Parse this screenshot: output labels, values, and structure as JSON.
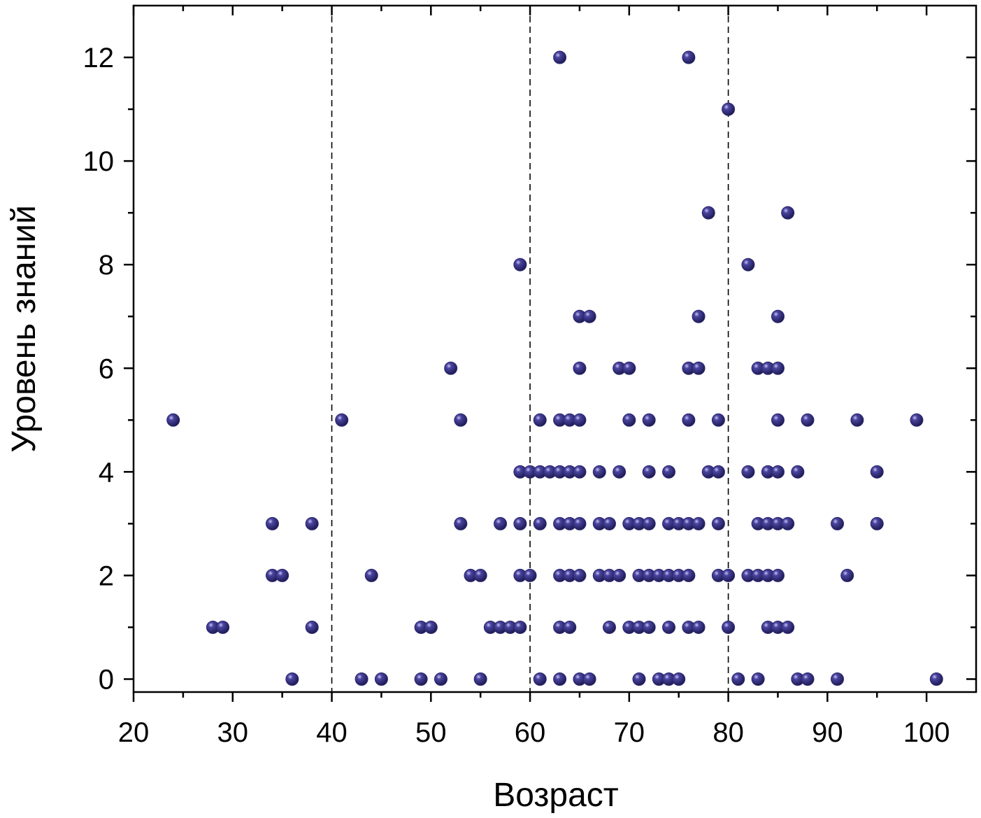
{
  "chart_data": {
    "type": "scatter",
    "title": "",
    "xlabel": "Возраст",
    "ylabel": "Уровень знаний",
    "xlim": [
      20,
      105
    ],
    "ylim": [
      -0.25,
      13
    ],
    "xticks": [
      20,
      30,
      40,
      50,
      60,
      70,
      80,
      90,
      100
    ],
    "yticks": [
      0,
      2,
      4,
      6,
      8,
      10,
      12
    ],
    "xminor": [
      25,
      35,
      45,
      55,
      65,
      75,
      85,
      95
    ],
    "yminor": [
      1,
      3,
      5,
      7,
      9,
      11
    ],
    "vlines": [
      40,
      60,
      80
    ],
    "grid": false,
    "marker_color": "#2e2a6e",
    "points": [
      {
        "x": 63,
        "y": 12
      },
      {
        "x": 76,
        "y": 12
      },
      {
        "x": 80,
        "y": 11
      },
      {
        "x": 78,
        "y": 9
      },
      {
        "x": 86,
        "y": 9
      },
      {
        "x": 59,
        "y": 8
      },
      {
        "x": 82,
        "y": 8
      },
      {
        "x": 65,
        "y": 7
      },
      {
        "x": 66,
        "y": 7
      },
      {
        "x": 77,
        "y": 7
      },
      {
        "x": 85,
        "y": 7
      },
      {
        "x": 52,
        "y": 6
      },
      {
        "x": 65,
        "y": 6
      },
      {
        "x": 69,
        "y": 6
      },
      {
        "x": 70,
        "y": 6
      },
      {
        "x": 76,
        "y": 6
      },
      {
        "x": 77,
        "y": 6
      },
      {
        "x": 83,
        "y": 6
      },
      {
        "x": 84,
        "y": 6
      },
      {
        "x": 85,
        "y": 6
      },
      {
        "x": 24,
        "y": 5
      },
      {
        "x": 41,
        "y": 5
      },
      {
        "x": 53,
        "y": 5
      },
      {
        "x": 61,
        "y": 5
      },
      {
        "x": 63,
        "y": 5
      },
      {
        "x": 64,
        "y": 5
      },
      {
        "x": 65,
        "y": 5
      },
      {
        "x": 70,
        "y": 5
      },
      {
        "x": 72,
        "y": 5
      },
      {
        "x": 76,
        "y": 5
      },
      {
        "x": 79,
        "y": 5
      },
      {
        "x": 85,
        "y": 5
      },
      {
        "x": 88,
        "y": 5
      },
      {
        "x": 93,
        "y": 5
      },
      {
        "x": 99,
        "y": 5
      },
      {
        "x": 59,
        "y": 4
      },
      {
        "x": 60,
        "y": 4
      },
      {
        "x": 61,
        "y": 4
      },
      {
        "x": 62,
        "y": 4
      },
      {
        "x": 63,
        "y": 4
      },
      {
        "x": 64,
        "y": 4
      },
      {
        "x": 65,
        "y": 4
      },
      {
        "x": 67,
        "y": 4
      },
      {
        "x": 69,
        "y": 4
      },
      {
        "x": 72,
        "y": 4
      },
      {
        "x": 74,
        "y": 4
      },
      {
        "x": 78,
        "y": 4
      },
      {
        "x": 79,
        "y": 4
      },
      {
        "x": 82,
        "y": 4
      },
      {
        "x": 84,
        "y": 4
      },
      {
        "x": 85,
        "y": 4
      },
      {
        "x": 87,
        "y": 4
      },
      {
        "x": 95,
        "y": 4
      },
      {
        "x": 34,
        "y": 3
      },
      {
        "x": 38,
        "y": 3
      },
      {
        "x": 53,
        "y": 3
      },
      {
        "x": 57,
        "y": 3
      },
      {
        "x": 59,
        "y": 3
      },
      {
        "x": 61,
        "y": 3
      },
      {
        "x": 63,
        "y": 3
      },
      {
        "x": 64,
        "y": 3
      },
      {
        "x": 65,
        "y": 3
      },
      {
        "x": 67,
        "y": 3
      },
      {
        "x": 68,
        "y": 3
      },
      {
        "x": 70,
        "y": 3
      },
      {
        "x": 71,
        "y": 3
      },
      {
        "x": 72,
        "y": 3
      },
      {
        "x": 74,
        "y": 3
      },
      {
        "x": 75,
        "y": 3
      },
      {
        "x": 76,
        "y": 3
      },
      {
        "x": 77,
        "y": 3
      },
      {
        "x": 79,
        "y": 3
      },
      {
        "x": 83,
        "y": 3
      },
      {
        "x": 84,
        "y": 3
      },
      {
        "x": 85,
        "y": 3
      },
      {
        "x": 86,
        "y": 3
      },
      {
        "x": 91,
        "y": 3
      },
      {
        "x": 95,
        "y": 3
      },
      {
        "x": 34,
        "y": 2
      },
      {
        "x": 35,
        "y": 2
      },
      {
        "x": 44,
        "y": 2
      },
      {
        "x": 54,
        "y": 2
      },
      {
        "x": 55,
        "y": 2
      },
      {
        "x": 59,
        "y": 2
      },
      {
        "x": 60,
        "y": 2
      },
      {
        "x": 63,
        "y": 2
      },
      {
        "x": 64,
        "y": 2
      },
      {
        "x": 65,
        "y": 2
      },
      {
        "x": 67,
        "y": 2
      },
      {
        "x": 68,
        "y": 2
      },
      {
        "x": 69,
        "y": 2
      },
      {
        "x": 71,
        "y": 2
      },
      {
        "x": 72,
        "y": 2
      },
      {
        "x": 73,
        "y": 2
      },
      {
        "x": 74,
        "y": 2
      },
      {
        "x": 75,
        "y": 2
      },
      {
        "x": 76,
        "y": 2
      },
      {
        "x": 79,
        "y": 2
      },
      {
        "x": 80,
        "y": 2
      },
      {
        "x": 82,
        "y": 2
      },
      {
        "x": 83,
        "y": 2
      },
      {
        "x": 84,
        "y": 2
      },
      {
        "x": 85,
        "y": 2
      },
      {
        "x": 92,
        "y": 2
      },
      {
        "x": 28,
        "y": 1
      },
      {
        "x": 29,
        "y": 1
      },
      {
        "x": 38,
        "y": 1
      },
      {
        "x": 49,
        "y": 1
      },
      {
        "x": 50,
        "y": 1
      },
      {
        "x": 56,
        "y": 1
      },
      {
        "x": 57,
        "y": 1
      },
      {
        "x": 58,
        "y": 1
      },
      {
        "x": 59,
        "y": 1
      },
      {
        "x": 63,
        "y": 1
      },
      {
        "x": 64,
        "y": 1
      },
      {
        "x": 68,
        "y": 1
      },
      {
        "x": 70,
        "y": 1
      },
      {
        "x": 71,
        "y": 1
      },
      {
        "x": 72,
        "y": 1
      },
      {
        "x": 74,
        "y": 1
      },
      {
        "x": 76,
        "y": 1
      },
      {
        "x": 77,
        "y": 1
      },
      {
        "x": 80,
        "y": 1
      },
      {
        "x": 84,
        "y": 1
      },
      {
        "x": 85,
        "y": 1
      },
      {
        "x": 86,
        "y": 1
      },
      {
        "x": 36,
        "y": 0
      },
      {
        "x": 43,
        "y": 0
      },
      {
        "x": 45,
        "y": 0
      },
      {
        "x": 49,
        "y": 0
      },
      {
        "x": 51,
        "y": 0
      },
      {
        "x": 55,
        "y": 0
      },
      {
        "x": 61,
        "y": 0
      },
      {
        "x": 63,
        "y": 0
      },
      {
        "x": 65,
        "y": 0
      },
      {
        "x": 66,
        "y": 0
      },
      {
        "x": 71,
        "y": 0
      },
      {
        "x": 73,
        "y": 0
      },
      {
        "x": 74,
        "y": 0
      },
      {
        "x": 75,
        "y": 0
      },
      {
        "x": 81,
        "y": 0
      },
      {
        "x": 83,
        "y": 0
      },
      {
        "x": 87,
        "y": 0
      },
      {
        "x": 88,
        "y": 0
      },
      {
        "x": 91,
        "y": 0
      },
      {
        "x": 101,
        "y": 0
      }
    ]
  }
}
